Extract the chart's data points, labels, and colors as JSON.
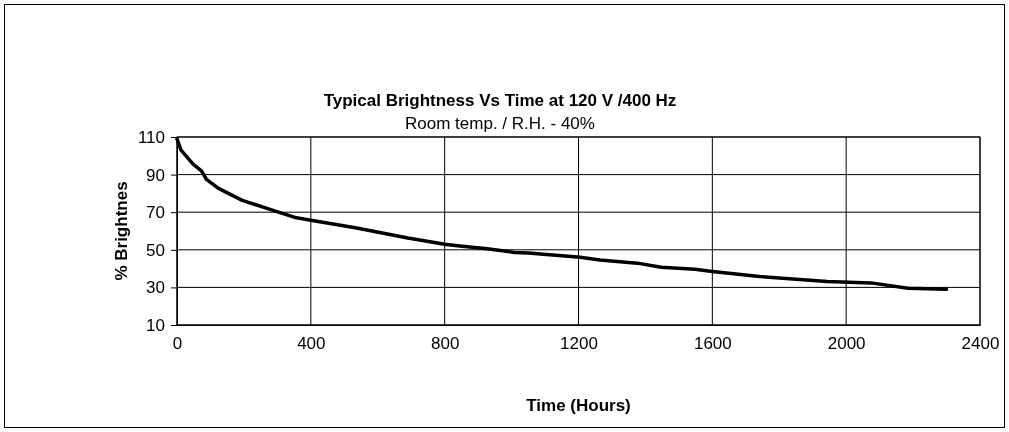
{
  "chart_data": {
    "type": "line",
    "title": "Typical Brightness Vs Time at 120 V /400 Hz",
    "subtitle": "Room temp. / R.H. - 40%",
    "xlabel": "Time (Hours)",
    "ylabel": "% Brightnes",
    "x": [
      0,
      12,
      27,
      48,
      73,
      88,
      124,
      195,
      287,
      357,
      400,
      537,
      690,
      800,
      845,
      927,
      1009,
      1050,
      1205,
      1264,
      1376,
      1447,
      1548,
      1600,
      1741,
      1943,
      2074,
      2185,
      2300
    ],
    "series": [
      {
        "color": "#000000",
        "values": [
          109,
          103,
          100,
          95.6,
          92,
          87.5,
          82.7,
          76.3,
          71,
          67,
          65.7,
          61.6,
          56.3,
          53,
          52,
          50.5,
          48.6,
          48.3,
          46,
          44.6,
          42.9,
          40.7,
          39.7,
          38.5,
          35.8,
          33.1,
          32.4,
          29.6,
          29
        ]
      }
    ],
    "xlim": [
      0,
      2400
    ],
    "xticks": [
      0,
      400,
      800,
      1200,
      1600,
      2000,
      2400
    ],
    "ylim": [
      10,
      110
    ],
    "yticks": [
      10,
      30,
      50,
      70,
      90,
      110
    ],
    "grid": true,
    "marker": "none",
    "line_style": "solid"
  }
}
